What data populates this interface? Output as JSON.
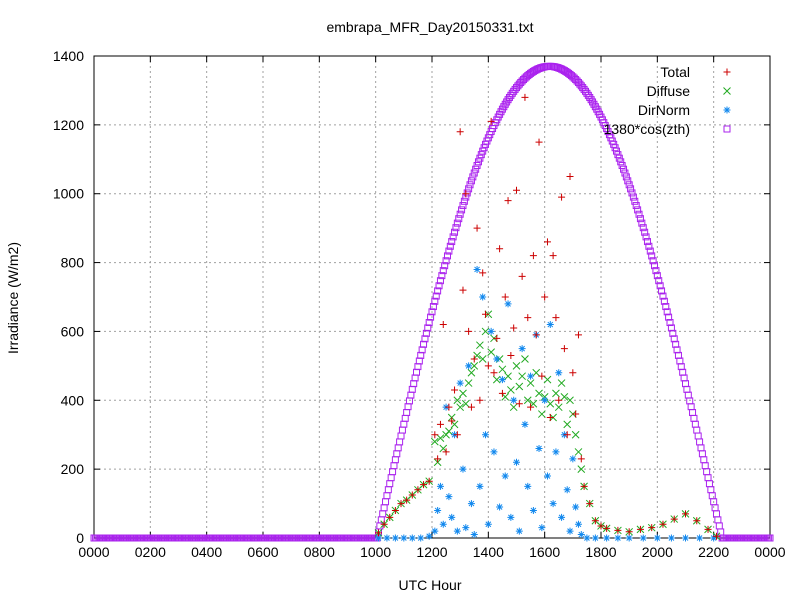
{
  "chart_data": {
    "type": "scatter",
    "title": "embrapa_MFR_Day20150331.txt",
    "xlabel": "UTC Hour",
    "ylabel": "Irradiance (W/m2)",
    "xlim": [
      0,
      24
    ],
    "ylim": [
      0,
      1400
    ],
    "x_ticks": [
      "0000",
      "0200",
      "0400",
      "0600",
      "0800",
      "1000",
      "1200",
      "1400",
      "1600",
      "1800",
      "2000",
      "2200",
      "0000"
    ],
    "y_ticks": [
      "0",
      "200",
      "400",
      "600",
      "800",
      "1000",
      "1200",
      "1400"
    ],
    "grid": true,
    "legend_position": "top-right",
    "colors": {
      "total": "#cc0000",
      "diffuse": "#22aa22",
      "dirnorm": "#1188ee",
      "clear_sky": "#aa22ee"
    },
    "series": [
      {
        "name": "Total",
        "marker": "plus",
        "x": [
          10.1,
          10.3,
          10.5,
          10.7,
          10.9,
          11.1,
          11.3,
          11.5,
          11.7,
          11.9,
          12.1,
          12.2,
          12.3,
          12.4,
          12.5,
          12.6,
          12.7,
          12.8,
          12.9,
          13.0,
          13.1,
          13.2,
          13.3,
          13.4,
          13.5,
          13.6,
          13.7,
          13.8,
          13.9,
          14.0,
          14.1,
          14.2,
          14.3,
          14.4,
          14.5,
          14.6,
          14.7,
          14.8,
          14.9,
          15.0,
          15.1,
          15.2,
          15.3,
          15.4,
          15.5,
          15.6,
          15.7,
          15.8,
          15.9,
          16.0,
          16.1,
          16.2,
          16.3,
          16.4,
          16.5,
          16.6,
          16.7,
          16.8,
          16.9,
          17.0,
          17.1,
          17.2,
          17.3,
          17.4,
          17.6,
          17.8,
          18.0,
          18.2,
          18.6,
          19.0,
          19.4,
          19.8,
          20.2,
          20.6,
          21.0,
          21.4,
          21.8,
          22.1
        ],
        "y": [
          15,
          40,
          60,
          80,
          100,
          110,
          125,
          140,
          155,
          165,
          300,
          230,
          330,
          620,
          250,
          380,
          340,
          430,
          300,
          1180,
          720,
          1000,
          600,
          380,
          520,
          900,
          400,
          770,
          650,
          500,
          1210,
          480,
          580,
          840,
          420,
          700,
          980,
          530,
          610,
          1010,
          390,
          760,
          1280,
          640,
          380,
          820,
          590,
          1150,
          470,
          700,
          860,
          350,
          820,
          640,
          400,
          990,
          550,
          300,
          1050,
          480,
          360,
          590,
          230,
          150,
          100,
          50,
          35,
          28,
          22,
          18,
          25,
          30,
          40,
          55,
          70,
          50,
          25,
          5
        ]
      },
      {
        "name": "Diffuse",
        "marker": "cross",
        "x": [
          10.1,
          10.3,
          10.5,
          10.7,
          10.9,
          11.1,
          11.3,
          11.5,
          11.7,
          11.9,
          12.1,
          12.2,
          12.3,
          12.4,
          12.5,
          12.6,
          12.7,
          12.8,
          12.9,
          13.0,
          13.1,
          13.2,
          13.3,
          13.4,
          13.5,
          13.6,
          13.7,
          13.8,
          13.9,
          14.0,
          14.1,
          14.2,
          14.3,
          14.4,
          14.5,
          14.6,
          14.7,
          14.8,
          14.9,
          15.0,
          15.1,
          15.2,
          15.3,
          15.4,
          15.5,
          15.6,
          15.7,
          15.8,
          15.9,
          16.0,
          16.1,
          16.2,
          16.3,
          16.4,
          16.5,
          16.6,
          16.7,
          16.8,
          16.9,
          17.0,
          17.1,
          17.2,
          17.3,
          17.4,
          17.6,
          17.8,
          18.0,
          18.2,
          18.6,
          19.0,
          19.4,
          19.8,
          20.2,
          20.6,
          21.0,
          21.4,
          21.8,
          22.1
        ],
        "y": [
          15,
          40,
          60,
          80,
          100,
          110,
          125,
          140,
          155,
          165,
          280,
          220,
          290,
          260,
          300,
          310,
          350,
          330,
          400,
          380,
          420,
          390,
          450,
          480,
          500,
          530,
          560,
          520,
          600,
          650,
          540,
          580,
          460,
          520,
          490,
          410,
          470,
          430,
          380,
          500,
          440,
          470,
          520,
          400,
          450,
          390,
          480,
          420,
          360,
          410,
          460,
          390,
          350,
          420,
          380,
          450,
          410,
          330,
          400,
          360,
          300,
          250,
          200,
          150,
          100,
          50,
          35,
          28,
          22,
          18,
          25,
          30,
          40,
          55,
          70,
          50,
          25,
          5
        ]
      },
      {
        "name": "DirNorm",
        "marker": "star",
        "x": [
          10.1,
          10.4,
          10.7,
          11.0,
          11.3,
          11.6,
          11.9,
          12.1,
          12.2,
          12.3,
          12.4,
          12.5,
          12.6,
          12.7,
          12.8,
          12.9,
          13.0,
          13.1,
          13.2,
          13.3,
          13.4,
          13.5,
          13.6,
          13.7,
          13.8,
          13.9,
          14.0,
          14.1,
          14.2,
          14.3,
          14.4,
          14.5,
          14.6,
          14.7,
          14.8,
          14.9,
          15.0,
          15.1,
          15.2,
          15.3,
          15.4,
          15.5,
          15.6,
          15.7,
          15.8,
          15.9,
          16.0,
          16.1,
          16.2,
          16.3,
          16.4,
          16.5,
          16.6,
          16.7,
          16.8,
          16.9,
          17.0,
          17.1,
          17.2,
          17.3,
          17.5,
          17.8,
          18.2,
          18.6,
          19.0,
          19.5,
          20.0,
          20.5,
          21.0,
          21.5,
          22.0
        ],
        "y": [
          0,
          0,
          0,
          0,
          0,
          0,
          5,
          20,
          80,
          150,
          40,
          380,
          120,
          60,
          300,
          20,
          450,
          200,
          30,
          500,
          100,
          10,
          780,
          150,
          700,
          300,
          40,
          600,
          250,
          520,
          90,
          460,
          180,
          680,
          60,
          400,
          220,
          20,
          550,
          330,
          150,
          470,
          80,
          590,
          260,
          30,
          400,
          180,
          620,
          100,
          250,
          480,
          60,
          300,
          140,
          20,
          230,
          90,
          40,
          10,
          0,
          0,
          0,
          0,
          0,
          0,
          0,
          0,
          0,
          0,
          0
        ]
      },
      {
        "name": "1380*cos(zth)",
        "marker": "square",
        "sunrise": 10.05,
        "sunset": 22.3,
        "peak": 1370
      }
    ]
  }
}
